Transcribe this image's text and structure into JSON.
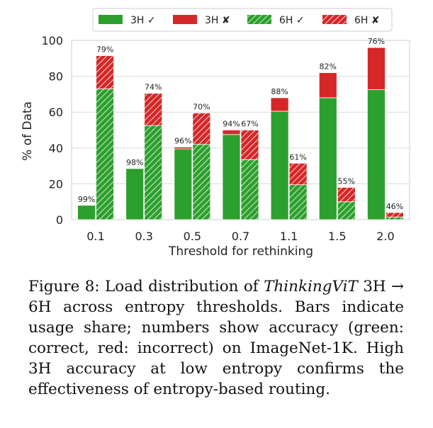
{
  "chart_data": {
    "type": "bar",
    "subtype": "stacked-paired",
    "categories": [
      "0.1",
      "0.3",
      "0.5",
      "0.7",
      "1.1",
      "1.5",
      "2.0"
    ],
    "xlabel": "Threshold for rethinking",
    "ylabel": "% of Data",
    "ylim": [
      0,
      100
    ],
    "yticks": [
      0,
      20,
      40,
      60,
      80,
      100
    ],
    "grid": true,
    "legend_position": "top-center",
    "legend": [
      {
        "label": "3H ✓",
        "color": "#2ca02c",
        "hatch": false
      },
      {
        "label": "3H ✘",
        "color": "#d62728",
        "hatch": false
      },
      {
        "label": "6H ✓",
        "color": "#2ca02c",
        "hatch": true
      },
      {
        "label": "6H ✘",
        "color": "#d62728",
        "hatch": true
      }
    ],
    "series": [
      {
        "name": "3H correct",
        "values": [
          8,
          28.5,
          39.5,
          47.5,
          60.5,
          68,
          72.5
        ]
      },
      {
        "name": "3H incorrect",
        "values": [
          0,
          0,
          1,
          2.5,
          7.5,
          14,
          23.5
        ]
      },
      {
        "name": "6H correct",
        "values": [
          73,
          52.5,
          42,
          33.5,
          19.5,
          10,
          1.5
        ]
      },
      {
        "name": "6H incorrect",
        "values": [
          18.5,
          18,
          17.5,
          16.5,
          12,
          8,
          2.5
        ]
      }
    ],
    "accuracy_labels": {
      "3H": [
        "99%",
        "98%",
        "96%",
        "94%",
        "88%",
        "82%",
        "76%"
      ],
      "6H": [
        "79%",
        "74%",
        "70%",
        "67%",
        "61%",
        "55%",
        "46%"
      ]
    },
    "colors": {
      "correct": "#2ca02c",
      "incorrect": "#d62728"
    }
  },
  "caption": {
    "figure_label": "Figure 8:",
    "text_before": " Load distribution of ",
    "model_name": "ThinkingViT",
    "text_after": " 3H → 6H across entropy thresholds. Bars indicate usage share; numbers show accuracy (green: correct, red: incorrect) on ImageNet-1K. High 3H accuracy at low entropy confirms the effectiveness of entropy-based routing."
  }
}
